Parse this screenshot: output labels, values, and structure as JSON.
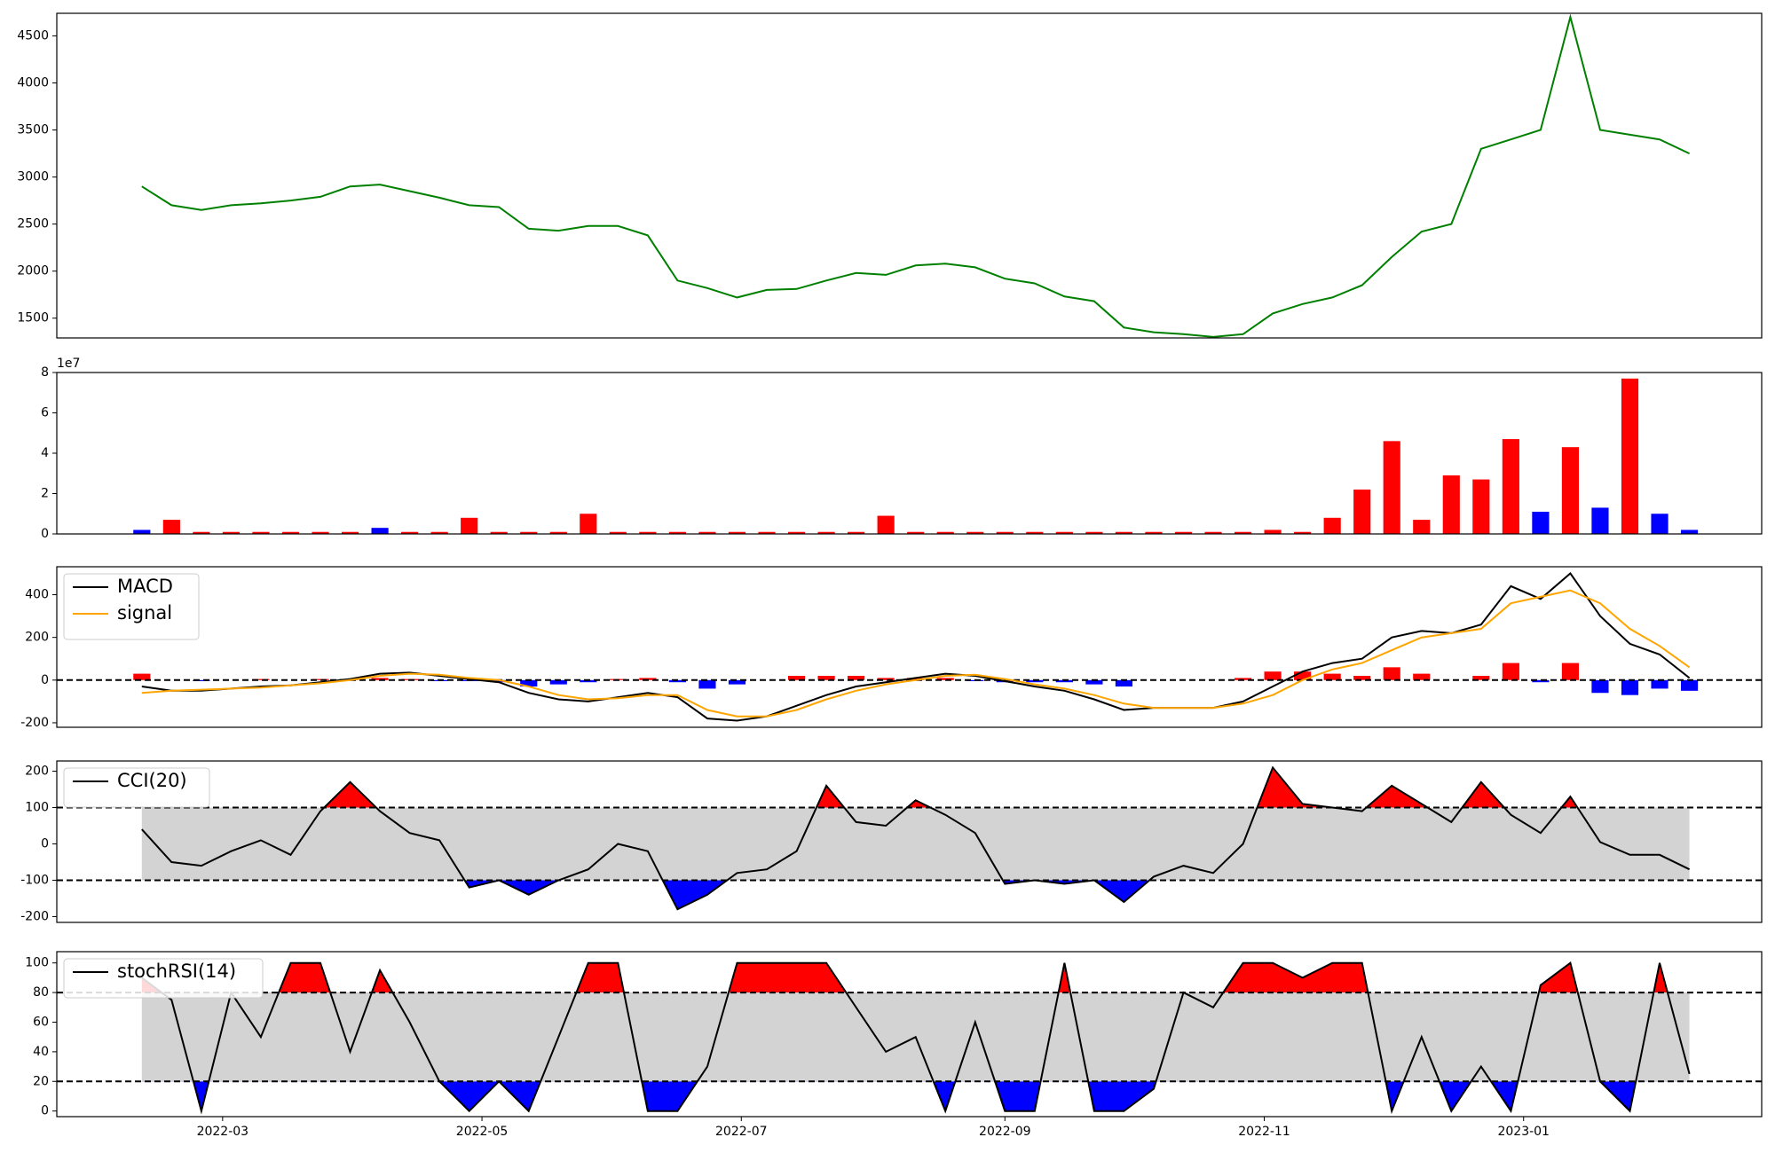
{
  "chart_data": {
    "type": "panels",
    "x": [
      "2022-02-10",
      "2022-02-17",
      "2022-02-24",
      "2022-03-03",
      "2022-03-10",
      "2022-03-17",
      "2022-03-24",
      "2022-03-31",
      "2022-04-07",
      "2022-04-14",
      "2022-04-21",
      "2022-04-28",
      "2022-05-05",
      "2022-05-12",
      "2022-05-19",
      "2022-05-26",
      "2022-06-02",
      "2022-06-09",
      "2022-06-16",
      "2022-06-23",
      "2022-06-30",
      "2022-07-07",
      "2022-07-14",
      "2022-07-21",
      "2022-07-28",
      "2022-08-04",
      "2022-08-11",
      "2022-08-18",
      "2022-08-25",
      "2022-09-01",
      "2022-09-08",
      "2022-09-15",
      "2022-09-22",
      "2022-09-29",
      "2022-10-06",
      "2022-10-13",
      "2022-10-20",
      "2022-10-27",
      "2022-11-03",
      "2022-11-10",
      "2022-11-17",
      "2022-11-24",
      "2022-12-01",
      "2022-12-08",
      "2022-12-15",
      "2022-12-22",
      "2022-12-29",
      "2023-01-05",
      "2023-01-12",
      "2023-01-19",
      "2023-01-26",
      "2023-02-02",
      "2023-02-09"
    ],
    "xlim": [
      "2022-01-21",
      "2023-02-26"
    ],
    "xticks": [
      "2022-03",
      "2022-05",
      "2022-07",
      "2022-09",
      "2022-11",
      "2023-01"
    ],
    "panels": [
      {
        "type": "line",
        "ylim": [
          1290,
          4740
        ],
        "yticks": [
          1500,
          2000,
          2500,
          3000,
          3500,
          4000,
          4500
        ],
        "series": [
          {
            "color": "green",
            "values": [
              2900,
              2700,
              2650,
              2700,
              2720,
              2750,
              2790,
              2900,
              2920,
              2850,
              2780,
              2700,
              2680,
              2450,
              2430,
              2480,
              2480,
              2380,
              1900,
              1820,
              1720,
              1800,
              1810,
              1900,
              1980,
              1960,
              2060,
              2080,
              2040,
              1920,
              1870,
              1730,
              1680,
              1400,
              1350,
              1330,
              1300,
              1330,
              1550,
              1650,
              1720,
              1850,
              2150,
              2420,
              2500,
              3300,
              3400,
              3500,
              4700,
              3500,
              3450,
              3400,
              3250
            ]
          }
        ]
      },
      {
        "type": "bar",
        "ylim": [
          0,
          8
        ],
        "yticks": [
          0,
          2,
          4,
          6,
          8
        ],
        "offset_label": "1e7",
        "values": [
          0.2,
          0.7,
          0.1,
          0.1,
          0.1,
          0.1,
          0.1,
          0.1,
          0.3,
          0.1,
          0.1,
          0.8,
          0.1,
          0.1,
          0.1,
          1.0,
          0.1,
          0.1,
          0.1,
          0.1,
          0.1,
          0.1,
          0.1,
          0.1,
          0.1,
          0.9,
          0.1,
          0.1,
          0.1,
          0.1,
          0.1,
          0.1,
          0.1,
          0.1,
          0.1,
          0.1,
          0.1,
          0.1,
          0.2,
          0.1,
          0.8,
          2.2,
          4.6,
          0.7,
          2.9,
          2.7,
          4.7,
          1.1,
          4.3,
          1.3,
          7.7,
          1.0,
          0.2
        ],
        "colors": [
          "blue",
          "red",
          "red",
          "red",
          "red",
          "red",
          "red",
          "red",
          "blue",
          "red",
          "red",
          "red",
          "red",
          "red",
          "red",
          "red",
          "red",
          "red",
          "red",
          "red",
          "red",
          "red",
          "red",
          "red",
          "red",
          "red",
          "red",
          "red",
          "red",
          "red",
          "red",
          "red",
          "red",
          "red",
          "red",
          "red",
          "red",
          "red",
          "red",
          "red",
          "red",
          "red",
          "red",
          "red",
          "red",
          "red",
          "red",
          "blue",
          "red",
          "blue",
          "red",
          "blue",
          "blue"
        ]
      },
      {
        "type": "macd",
        "ylim": [
          -221,
          531
        ],
        "yticks": [
          -200,
          0,
          200,
          400
        ],
        "hlines": [
          0
        ],
        "legend": "upper left",
        "series": [
          {
            "name": "MACD",
            "color": "black",
            "values": [
              -30,
              -50,
              -50,
              -40,
              -30,
              -25,
              -10,
              5,
              30,
              35,
              20,
              5,
              -10,
              -60,
              -90,
              -100,
              -80,
              -60,
              -80,
              -180,
              -190,
              -170,
              -120,
              -70,
              -30,
              -10,
              10,
              30,
              20,
              -5,
              -30,
              -50,
              -90,
              -140,
              -130,
              -130,
              -130,
              -100,
              -30,
              40,
              80,
              100,
              200,
              230,
              220,
              260,
              440,
              380,
              500,
              300,
              170,
              120,
              10
            ]
          },
          {
            "name": "signal",
            "color": "orange",
            "values": [
              -60,
              -50,
              -45,
              -40,
              -35,
              -25,
              -15,
              0,
              20,
              30,
              25,
              10,
              0,
              -30,
              -70,
              -90,
              -85,
              -70,
              -70,
              -140,
              -170,
              -170,
              -140,
              -90,
              -50,
              -20,
              0,
              20,
              25,
              5,
              -20,
              -40,
              -70,
              -110,
              -130,
              -130,
              -130,
              -110,
              -70,
              0,
              50,
              80,
              140,
              200,
              220,
              240,
              360,
              390,
              420,
              360,
              240,
              160,
              60
            ]
          }
        ],
        "histogram": {
          "positive_color": "red",
          "negative_color": "blue",
          "values": [
            30,
            0,
            -5,
            0,
            5,
            0,
            5,
            5,
            10,
            5,
            -5,
            -5,
            -10,
            -30,
            -20,
            -10,
            5,
            10,
            -10,
            -40,
            -20,
            0,
            20,
            20,
            20,
            10,
            10,
            10,
            -5,
            -10,
            -10,
            -10,
            -20,
            -30,
            0,
            0,
            0,
            10,
            40,
            40,
            30,
            20,
            60,
            30,
            0,
            20,
            80,
            -10,
            80,
            -60,
            -70,
            -40,
            -50
          ]
        }
      },
      {
        "type": "oscillator",
        "ylim": [
          -216,
          228
        ],
        "yticks": [
          -200,
          -100,
          0,
          100,
          200
        ],
        "hlines": [
          100,
          -100
        ],
        "legend": "upper left",
        "band_color": "lightgray",
        "above_color": "red",
        "below_color": "blue",
        "series": [
          {
            "name": "CCI(20)",
            "color": "black",
            "values": [
              40,
              -50,
              -60,
              -20,
              10,
              -30,
              90,
              170,
              90,
              30,
              10,
              -120,
              -100,
              -140,
              -100,
              -70,
              0,
              -20,
              -180,
              -140,
              -80,
              -70,
              -20,
              160,
              60,
              50,
              120,
              80,
              30,
              -110,
              -100,
              -110,
              -100,
              -160,
              -90,
              -60,
              -80,
              0,
              210,
              110,
              100,
              90,
              160,
              110,
              60,
              170,
              80,
              30,
              130,
              5,
              -30,
              -30,
              -70
            ]
          }
        ]
      },
      {
        "type": "oscillator",
        "ylim": [
          -3.8,
          107.6
        ],
        "yticks": [
          0,
          20,
          40,
          60,
          80,
          100
        ],
        "hlines": [
          80,
          20
        ],
        "legend": "upper left",
        "band_color": "lightgray",
        "above_color": "red",
        "below_color": "blue",
        "series": [
          {
            "name": "stochRSI(14)",
            "color": "black",
            "values": [
              90,
              75,
              0,
              80,
              50,
              100,
              100,
              40,
              95,
              60,
              20,
              0,
              20,
              0,
              50,
              100,
              100,
              0,
              0,
              30,
              100,
              100,
              100,
              100,
              70,
              40,
              50,
              0,
              60,
              0,
              0,
              100,
              0,
              0,
              15,
              80,
              70,
              100,
              100,
              90,
              100,
              100,
              0,
              50,
              0,
              30,
              0,
              85,
              100,
              20,
              0,
              100,
              25
            ]
          }
        ]
      }
    ]
  }
}
